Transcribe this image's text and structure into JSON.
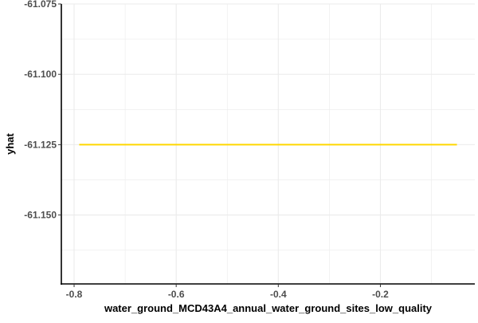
{
  "chart_data": {
    "type": "line",
    "title": "",
    "xlabel": "water_ground_MCD43A4_annual_water_ground_sites_low_quality",
    "ylabel": "yhat",
    "xlim": [
      -0.825,
      -0.015
    ],
    "ylim": [
      -61.1745,
      -61.075
    ],
    "x_ticks": [
      {
        "value": -0.8,
        "label": "-0.8"
      },
      {
        "value": -0.6,
        "label": "-0.6"
      },
      {
        "value": -0.4,
        "label": "-0.4"
      },
      {
        "value": -0.2,
        "label": "-0.2"
      }
    ],
    "y_ticks": [
      {
        "value": -61.075,
        "label": "-61.075"
      },
      {
        "value": -61.1,
        "label": "-61.100"
      },
      {
        "value": -61.125,
        "label": "-61.125"
      },
      {
        "value": -61.15,
        "label": "-61.150"
      }
    ],
    "grid": true,
    "series": [
      {
        "x": [
          -0.79,
          -0.05
        ],
        "y": [
          -61.125,
          -61.125
        ],
        "color": "#FFD700"
      }
    ],
    "colors": {
      "line": "#FFD700",
      "grid": "#ebebeb",
      "axis": "#000000",
      "tick_text": "#4d4d4d"
    }
  }
}
